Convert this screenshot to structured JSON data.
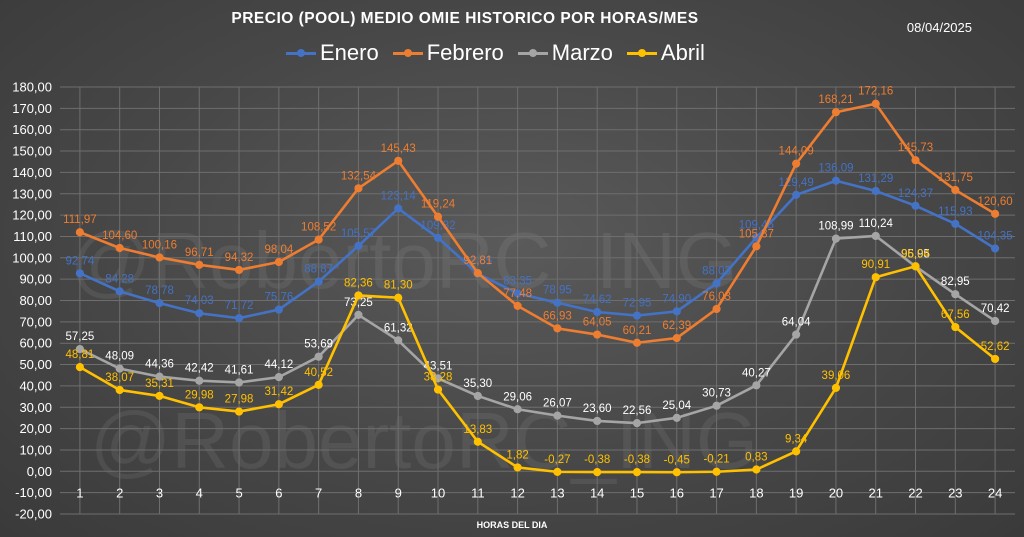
{
  "header": {
    "title": "PRECIO (POOL) MEDIO OMIE HISTORICO POR HORAS/MES",
    "date": "08/04/2025"
  },
  "watermark": "@RobertoRC_ING",
  "colors": {
    "background": "#474747",
    "gridline": "#6e6e6e",
    "text": "#ffffff"
  },
  "chart_data": {
    "type": "line",
    "title": "PRECIO (POOL) MEDIO OMIE HISTORICO POR HORAS/MES",
    "xlabel": "HORAS DEL DIA",
    "ylabel": "",
    "x": [
      1,
      2,
      3,
      4,
      5,
      6,
      7,
      8,
      9,
      10,
      11,
      12,
      13,
      14,
      15,
      16,
      17,
      18,
      19,
      20,
      21,
      22,
      23,
      24
    ],
    "x_tick_labels": [
      "1",
      "2",
      "3",
      "4",
      "5",
      "6",
      "7",
      "8",
      "9",
      "10",
      "11",
      "12",
      "13",
      "14",
      "15",
      "16",
      "17",
      "18",
      "19",
      "20",
      "21",
      "22",
      "23",
      "24"
    ],
    "ylim": [
      -20,
      180
    ],
    "y_tick_labels": [
      "-20,00",
      "-10,00",
      "0,00",
      "10,00",
      "20,00",
      "30,00",
      "40,00",
      "50,00",
      "60,00",
      "70,00",
      "80,00",
      "90,00",
      "100,00",
      "110,00",
      "120,00",
      "130,00",
      "140,00",
      "150,00",
      "160,00",
      "170,00",
      "180,00"
    ],
    "grid": true,
    "legend_position": "top-center",
    "series": [
      {
        "name": "Enero",
        "color": "#4472c4",
        "values": [
          92.74,
          84.28,
          78.78,
          74.03,
          71.72,
          75.76,
          88.87,
          105.57,
          123.14,
          109.32,
          92.55,
          83.35,
          78.95,
          74.62,
          72.95,
          74.9,
          88.03,
          109.45,
          129.49,
          136.09,
          131.29,
          124.37,
          115.93,
          104.35
        ],
        "labels": [
          "92,74",
          "84,28",
          "78,78",
          "74,03",
          "71,72",
          "75,76",
          "88,87",
          "105,57",
          "123,14",
          "109,32",
          "92,55",
          "83,35",
          "78,95",
          "74,62",
          "72,95",
          "74,90",
          "88,03",
          "109,45",
          "129,49",
          "136,09",
          "131,29",
          "124,37",
          "115,93",
          "104,35"
        ]
      },
      {
        "name": "Febrero",
        "color": "#ed7d31",
        "values": [
          111.97,
          104.6,
          100.16,
          96.71,
          94.32,
          98.04,
          108.52,
          132.54,
          145.43,
          119.24,
          92.81,
          77.48,
          66.93,
          64.05,
          60.21,
          62.39,
          76.03,
          105.37,
          144.09,
          168.21,
          172.16,
          145.73,
          131.75,
          120.6
        ],
        "labels": [
          "111,97",
          "104,60",
          "100,16",
          "96,71",
          "94,32",
          "98,04",
          "108,52",
          "132,54",
          "145,43",
          "119,24",
          "92,81",
          "77,48",
          "66,93",
          "64,05",
          "60,21",
          "62,39",
          "76,03",
          "105,37",
          "144,09",
          "168,21",
          "172,16",
          "145,73",
          "131,75",
          "120,60"
        ]
      },
      {
        "name": "Marzo",
        "color": "#a5a5a5",
        "values": [
          57.25,
          48.09,
          44.36,
          42.42,
          41.61,
          44.12,
          53.69,
          73.25,
          61.32,
          43.51,
          35.3,
          29.06,
          26.07,
          23.6,
          22.56,
          25.04,
          30.73,
          40.27,
          64.04,
          108.99,
          110.24,
          95.95,
          82.95,
          70.42
        ],
        "labels": [
          "57,25",
          "48,09",
          "44,36",
          "42,42",
          "41,61",
          "44,12",
          "53,69",
          "73,25",
          "61,32",
          "43,51",
          "35,30",
          "29,06",
          "26,07",
          "23,60",
          "22,56",
          "25,04",
          "30,73",
          "40,27",
          "64,04",
          "108,99",
          "110,24",
          "95,95",
          "82,95",
          "70,42"
        ]
      },
      {
        "name": "Abril",
        "color": "#ffc000",
        "values": [
          48.81,
          38.07,
          35.31,
          29.98,
          27.98,
          31.42,
          40.52,
          82.36,
          81.3,
          38.28,
          13.83,
          1.82,
          -0.27,
          -0.38,
          -0.38,
          -0.45,
          -0.21,
          0.83,
          9.34,
          39.06,
          90.91,
          96.04,
          67.56,
          52.62
        ],
        "labels": [
          "48,81",
          "38,07",
          "35,31",
          "29,98",
          "27,98",
          "31,42",
          "40,52",
          "82,36",
          "81,30",
          "38,28",
          "13,83",
          "1,82",
          "-0,27",
          "-0,38",
          "-0,38",
          "-0,45",
          "-0,21",
          "0,83",
          "9,34",
          "39,06",
          "90,91",
          "96,04",
          "67,56",
          "52,62"
        ]
      }
    ]
  }
}
